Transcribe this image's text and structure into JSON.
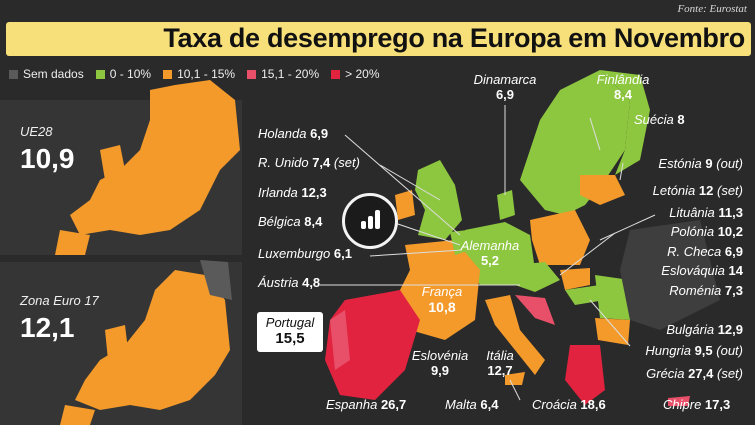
{
  "source": "Fonte: Eurostat",
  "title": "Taxa de desemprego na Europa em Novembro",
  "legend": [
    {
      "label": "Sem dados",
      "color": "#5a5a5a"
    },
    {
      "label": "0 - 10%",
      "color": "#8dc63f"
    },
    {
      "label": "10,1 - 15%",
      "color": "#f39a2b"
    },
    {
      "label": "15,1 - 20%",
      "color": "#e8506a"
    },
    {
      "label": "> 20%",
      "color": "#e2233f"
    }
  ],
  "aggregates": [
    {
      "name": "UE28",
      "value": "10,9"
    },
    {
      "name": "Zona Euro 17",
      "value": "12,1"
    }
  ],
  "countries_left": [
    {
      "name": "Holanda",
      "value": "6,9",
      "note": ""
    },
    {
      "name": "R. Unido",
      "value": "7,4",
      "note": "(set)"
    },
    {
      "name": "Irlanda",
      "value": "12,3",
      "note": ""
    },
    {
      "name": "Bélgica",
      "value": "8,4",
      "note": ""
    },
    {
      "name": "Luxemburgo",
      "value": "6,1",
      "note": ""
    },
    {
      "name": "Áustria",
      "value": "4,8",
      "note": ""
    }
  ],
  "countries_right": [
    {
      "name": "Estónia",
      "value": "9",
      "note": "(out)"
    },
    {
      "name": "Letónia",
      "value": "12",
      "note": "(set)"
    },
    {
      "name": "Lituânia",
      "value": "11,3",
      "note": ""
    },
    {
      "name": "Polónia",
      "value": "10,2",
      "note": ""
    },
    {
      "name": "R. Checa",
      "value": "6,9",
      "note": ""
    },
    {
      "name": "Eslováquia",
      "value": "14",
      "note": ""
    },
    {
      "name": "Roménia",
      "value": "7,3",
      "note": ""
    }
  ],
  "countries_lower_right": [
    {
      "name": "Bulgária",
      "value": "12,9",
      "note": ""
    },
    {
      "name": "Hungria",
      "value": "9,5",
      "note": "(out)"
    },
    {
      "name": "Grécia",
      "value": "27,4",
      "note": "(set)"
    }
  ],
  "map_labels": {
    "dinamarca": {
      "name": "Dinamarca",
      "value": "6,9"
    },
    "finlandia": {
      "name": "Finlândia",
      "value": "8,4"
    },
    "suecia": {
      "name": "Suécia",
      "value": "8"
    },
    "alemanha": {
      "name": "Alemanha",
      "value": "5,2"
    },
    "franca": {
      "name": "França",
      "value": "10,8"
    },
    "portugal": {
      "name": "Portugal",
      "value": "15,5"
    },
    "eslovenia": {
      "name": "Eslovénia",
      "value": "9,9"
    },
    "italia": {
      "name": "Itália",
      "value": "12,7"
    },
    "espanha": {
      "name": "Espanha",
      "value": "26,7"
    },
    "malta": {
      "name": "Malta",
      "value": "6,4"
    },
    "croacia": {
      "name": "Croácia",
      "value": "18,6"
    },
    "chipre": {
      "name": "Chipre",
      "value": "17,3"
    }
  }
}
